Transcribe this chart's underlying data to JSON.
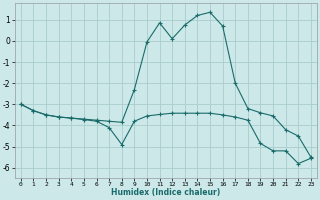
{
  "xlabel": "Humidex (Indice chaleur)",
  "background_color": "#cce8e8",
  "grid_color": "#aacccc",
  "line_color": "#1a6b6b",
  "xlim": [
    -0.5,
    23.5
  ],
  "ylim": [
    -6.5,
    1.8
  ],
  "yticks": [
    1,
    0,
    -1,
    -2,
    -3,
    -4,
    -5,
    -6
  ],
  "xticks": [
    0,
    1,
    2,
    3,
    4,
    5,
    6,
    7,
    8,
    9,
    10,
    11,
    12,
    13,
    14,
    15,
    16,
    17,
    18,
    19,
    20,
    21,
    22,
    23
  ],
  "line1_x": [
    0,
    1,
    2,
    3,
    4,
    5,
    6,
    7,
    8,
    9,
    10,
    11,
    12,
    13,
    14,
    15,
    16,
    17,
    18,
    19,
    20,
    21,
    22,
    23
  ],
  "line1_y": [
    -3.0,
    -3.3,
    -3.5,
    -3.6,
    -3.65,
    -3.7,
    -3.75,
    -3.8,
    -3.85,
    -2.3,
    -0.05,
    0.85,
    0.1,
    0.75,
    1.2,
    1.35,
    0.7,
    -2.0,
    -3.2,
    -3.4,
    -3.55,
    -4.2,
    -4.5,
    -5.5
  ],
  "line2_x": [
    0,
    1,
    2,
    3,
    4,
    5,
    6,
    7,
    8,
    9,
    10,
    11,
    12,
    13,
    14,
    15,
    16,
    17,
    18,
    19,
    20,
    21,
    22,
    23
  ],
  "line2_y": [
    -3.0,
    -3.3,
    -3.5,
    -3.6,
    -3.65,
    -3.72,
    -3.8,
    -4.1,
    -4.9,
    -3.8,
    -3.55,
    -3.48,
    -3.42,
    -3.42,
    -3.42,
    -3.42,
    -3.5,
    -3.6,
    -3.75,
    -4.85,
    -5.2,
    -5.2,
    -5.8,
    -5.55
  ]
}
